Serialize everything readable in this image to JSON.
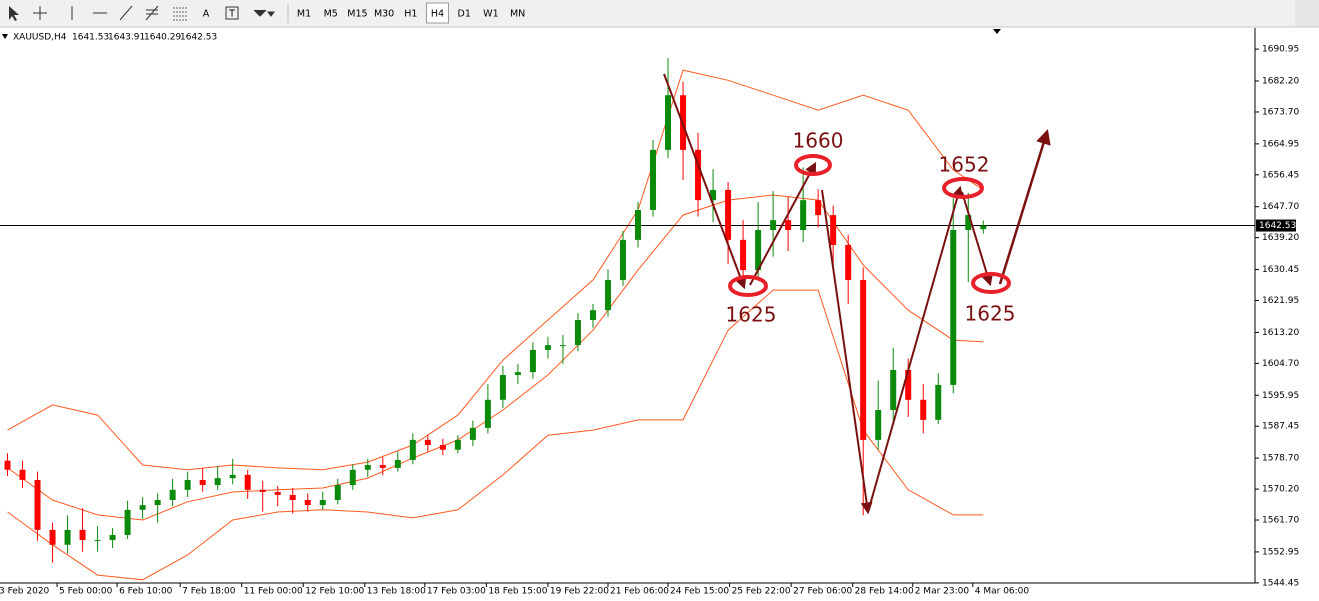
{
  "toolbar": {
    "timeframes": [
      "M1",
      "M5",
      "M15",
      "M30",
      "H1",
      "H4",
      "D1",
      "W1",
      "MN"
    ],
    "active_timeframe": 5,
    "tool_texts": [
      "A",
      "T"
    ]
  },
  "chart_data": {
    "type": "candlestick",
    "symbol": "XAUUSD,H4",
    "open": [
      1578.0,
      1575.5,
      1572.7,
      1559.0,
      1554.9,
      1559.0,
      1556.2,
      1556.2,
      1557.6,
      1564.5,
      1565.8,
      1567.2,
      1570.0,
      1572.7,
      1571.3,
      1573.2,
      1574.1,
      1570.0,
      1569.4,
      1568.6,
      1567.2,
      1565.8,
      1567.2,
      1571.3,
      1575.5,
      1576.8,
      1576.0,
      1578.2,
      1583.7,
      1582.3,
      1581.0,
      1583.7,
      1587.0,
      1594.7,
      1601.5,
      1602.3,
      1608.4,
      1609.7,
      1609.7,
      1616.6,
      1619.3,
      1627.6,
      1638.6,
      1646.8,
      1663.3,
      1678.3,
      1663.3,
      1649.5,
      1652.3,
      1638.6,
      1630.3,
      1641.3,
      1644.0,
      1641.3,
      1649.5,
      1645.4,
      1637.2,
      1627.6,
      1583.7,
      1591.9,
      1602.9,
      1594.7,
      1589.2,
      1598.8,
      1641.3,
      1641.53
    ],
    "high": [
      1580.0,
      1578.0,
      1575.0,
      1561.0,
      1563.0,
      1565.0,
      1560.0,
      1559.5,
      1567.0,
      1568.0,
      1569.0,
      1573.0,
      1575.0,
      1576.0,
      1576.5,
      1578.5,
      1575.5,
      1572.5,
      1571.0,
      1570.5,
      1569.0,
      1569.5,
      1573.0,
      1577.0,
      1578.5,
      1579.0,
      1580.5,
      1585.5,
      1585.0,
      1584.0,
      1585.0,
      1589.0,
      1599.0,
      1604.0,
      1604.5,
      1610.5,
      1612.0,
      1612.5,
      1618.5,
      1621.0,
      1630.5,
      1641.0,
      1649.0,
      1666.0,
      1688.5,
      1682.0,
      1668.0,
      1658.0,
      1654.5,
      1644.0,
      1649.0,
      1652.0,
      1650.5,
      1658.5,
      1652.5,
      1648.0,
      1640.0,
      1631.0,
      1600.0,
      1609.0,
      1606.0,
      1599.0,
      1602.0,
      1650.0,
      1651.5,
      1643.91
    ],
    "low": [
      1573.8,
      1570.5,
      1556.0,
      1550.0,
      1552.5,
      1553.0,
      1553.0,
      1554.0,
      1556.5,
      1562.0,
      1561.0,
      1565.5,
      1568.0,
      1569.5,
      1570.0,
      1571.5,
      1567.5,
      1564.0,
      1565.5,
      1563.5,
      1564.0,
      1564.5,
      1566.0,
      1570.0,
      1573.5,
      1574.0,
      1575.0,
      1577.0,
      1580.5,
      1579.5,
      1580.0,
      1582.0,
      1585.5,
      1592.5,
      1599.0,
      1600.5,
      1606.0,
      1604.5,
      1608.0,
      1614.5,
      1617.5,
      1626.0,
      1636.5,
      1645.0,
      1661.0,
      1655.0,
      1645.0,
      1643.5,
      1632.0,
      1626.5,
      1628.5,
      1634.0,
      1635.5,
      1638.0,
      1642.0,
      1631.0,
      1621.0,
      1563.0,
      1581.0,
      1589.0,
      1590.0,
      1585.5,
      1588.0,
      1596.5,
      1627.0,
      1640.29
    ],
    "close": [
      1575.5,
      1572.7,
      1559.0,
      1554.9,
      1559.0,
      1556.2,
      1556.2,
      1557.6,
      1564.5,
      1565.8,
      1567.2,
      1570.0,
      1572.7,
      1571.3,
      1573.2,
      1574.1,
      1570.0,
      1569.4,
      1568.6,
      1567.2,
      1565.8,
      1567.2,
      1571.3,
      1575.5,
      1576.8,
      1576.0,
      1578.2,
      1583.7,
      1582.3,
      1581.0,
      1583.7,
      1587.0,
      1594.7,
      1601.5,
      1602.3,
      1608.4,
      1609.7,
      1609.7,
      1616.6,
      1619.3,
      1627.6,
      1638.6,
      1646.8,
      1663.3,
      1678.3,
      1663.3,
      1649.5,
      1652.3,
      1638.6,
      1630.3,
      1641.3,
      1644.0,
      1641.3,
      1649.5,
      1645.4,
      1637.2,
      1627.6,
      1583.7,
      1591.9,
      1602.9,
      1594.7,
      1589.2,
      1598.8,
      1641.3,
      1645.4,
      1642.53
    ],
    "up_color": "#0b8a0b",
    "down_color": "#ff0000",
    "bands": [
      {
        "color": "#ff5a1f",
        "x": [
          0,
          3,
          6,
          9,
          12,
          15,
          18,
          21,
          24,
          27,
          30,
          33,
          36,
          39,
          42,
          45,
          48,
          51,
          54,
          57,
          60,
          63,
          65
        ],
        "values": [
          1586.4,
          1593.3,
          1590.5,
          1576.8,
          1575.5,
          1576.8,
          1576.0,
          1575.5,
          1577.6,
          1582.3,
          1590.5,
          1605.6,
          1616.6,
          1627.6,
          1646.8,
          1685.2,
          1682.4,
          1678.3,
          1674.2,
          1678.3,
          1674.2,
          1657.8,
          1652.3
        ]
      },
      {
        "color": "#ff5a1f",
        "x": [
          0,
          3,
          6,
          9,
          12,
          15,
          18,
          21,
          24,
          27,
          30,
          33,
          36,
          39,
          42,
          45,
          48,
          51,
          54,
          57,
          60,
          63,
          65
        ],
        "values": [
          1576.0,
          1567.2,
          1563.1,
          1561.7,
          1566.7,
          1569.4,
          1570.0,
          1570.5,
          1573.2,
          1578.7,
          1583.7,
          1591.9,
          1601.5,
          1613.8,
          1630.3,
          1645.4,
          1649.5,
          1650.9,
          1649.5,
          1631.7,
          1619.3,
          1611.1,
          1610.6
        ]
      },
      {
        "color": "#ff5a1f",
        "x": [
          0,
          3,
          6,
          9,
          12,
          15,
          18,
          21,
          24,
          27,
          30,
          33,
          36,
          39,
          42,
          45,
          48,
          51,
          54,
          57,
          60,
          63,
          65
        ],
        "values": [
          1563.9,
          1554.9,
          1546.6,
          1545.3,
          1552.1,
          1561.7,
          1563.9,
          1564.5,
          1563.9,
          1562.3,
          1564.5,
          1574.1,
          1585.0,
          1586.4,
          1589.2,
          1589.2,
          1613.8,
          1624.8,
          1624.8,
          1586.4,
          1570.0,
          1563.1,
          1563.1
        ]
      }
    ],
    "xlim": [
      -0.5,
      83.1
    ],
    "xticks": [
      {
        "value": -0.7,
        "label": "3 Feb 2020"
      },
      {
        "value": 3.3,
        "label": "5 Feb 00:00"
      },
      {
        "value": 7.3,
        "label": "6 Feb 10:00"
      },
      {
        "value": 11.5,
        "label": "7 Feb 18:00"
      },
      {
        "value": 15.6,
        "label": "11 Feb 00:00"
      },
      {
        "value": 19.7,
        "label": "12 Feb 10:00"
      },
      {
        "value": 23.8,
        "label": "13 Feb 18:00"
      },
      {
        "value": 27.8,
        "label": "17 Feb 03:00"
      },
      {
        "value": 31.9,
        "label": "18 Feb 15:00"
      },
      {
        "value": 36,
        "label": "19 Feb 22:00"
      },
      {
        "value": 40,
        "label": "21 Feb 06:00"
      },
      {
        "value": 44,
        "label": "24 Feb 15:00"
      },
      {
        "value": 48.1,
        "label": "25 Feb 22:00"
      },
      {
        "value": 52.2,
        "label": "27 Feb 06:00"
      },
      {
        "value": 56.3,
        "label": "28 Feb 14:00"
      },
      {
        "value": 60.3,
        "label": "2 Mar 23:00"
      },
      {
        "value": 64.3,
        "label": "4 Mar 06:00"
      }
    ],
    "ylim": [
      1542.5,
      1696.2
    ],
    "yticks": [
      1690.95,
      {
        "value": 1682.2,
        "label": "1682.20"
      },
      {
        "value": 1673.7,
        "label": "1673.70"
      },
      1664.95,
      1656.45,
      {
        "value": 1647.7,
        "label": "1647.70"
      },
      {
        "value": 1639.2,
        "label": "1639.20"
      },
      1630.45,
      1621.95,
      {
        "value": 1613.2,
        "label": "1613.20"
      },
      {
        "value": 1604.7,
        "label": "1604.70"
      },
      1595.95,
      1587.45,
      {
        "value": 1578.7,
        "label": "1578.70"
      },
      {
        "value": 1570.2,
        "label": "1570.20"
      },
      {
        "value": 1561.7,
        "label": "1561.70"
      },
      1552.95,
      1544.45
    ],
    "annotations": [
      "1660",
      "1625",
      "1652",
      "1625"
    ]
  }
}
